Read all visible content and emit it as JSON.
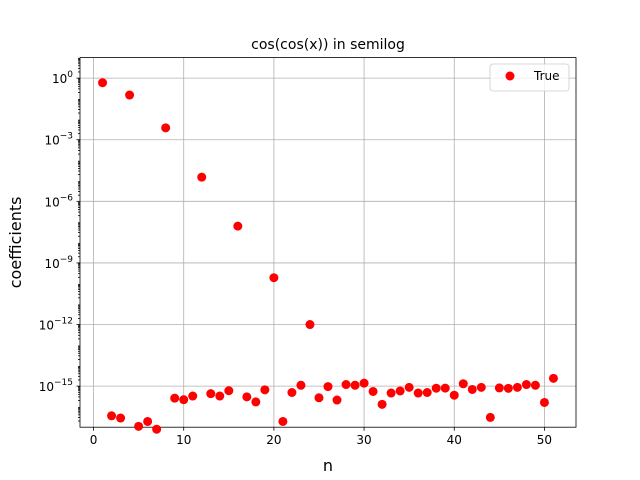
{
  "chart_data": {
    "type": "scatter",
    "title": "cos(cos(x)) in semilog",
    "xlabel": "n",
    "ylabel": "coefficients",
    "xlim": [
      -1.5,
      53.5
    ],
    "ylim": [
      1e-17,
      10
    ],
    "yscale": "log",
    "grid": true,
    "legend": {
      "position": "top-right",
      "entries": [
        "True"
      ]
    },
    "x_ticks": [
      0,
      10,
      20,
      30,
      40,
      50
    ],
    "x_tick_labels": [
      "0",
      "10",
      "20",
      "30",
      "40",
      "50"
    ],
    "y_ticks": [
      1,
      0.001,
      1e-06,
      1e-09,
      1e-12,
      1e-15
    ],
    "y_tick_labels": [
      {
        "base": "10",
        "exp": "0"
      },
      {
        "base": "10",
        "exp": "−3"
      },
      {
        "base": "10",
        "exp": "−6"
      },
      {
        "base": "10",
        "exp": "−9"
      },
      {
        "base": "10",
        "exp": "−12"
      },
      {
        "base": "10",
        "exp": "−15"
      }
    ],
    "series": [
      {
        "name": "True",
        "color": "#ff0000",
        "x": [
          1,
          2,
          3,
          4,
          5,
          6,
          7,
          8,
          9,
          10,
          11,
          12,
          13,
          14,
          15,
          16,
          17,
          18,
          19,
          20,
          21,
          22,
          23,
          24,
          25,
          26,
          27,
          28,
          29,
          30,
          31,
          32,
          33,
          34,
          35,
          36,
          37,
          38,
          39,
          40,
          41,
          42,
          43,
          44,
          45,
          46,
          47,
          48,
          49,
          50,
          51
        ],
        "y": [
          0.6,
          3.6e-17,
          2.8e-17,
          0.15,
          1.1e-17,
          1.9e-17,
          8e-18,
          0.0038,
          2.6e-16,
          2.2e-16,
          3.3e-16,
          1.5e-05,
          4.3e-16,
          3.3e-16,
          6e-16,
          6.2e-08,
          3e-16,
          1.7e-16,
          6.6e-16,
          1.9e-10,
          1.9e-17,
          4.9e-16,
          1.1e-15,
          1e-12,
          2.7e-16,
          9.5e-16,
          2.1e-16,
          1.2e-15,
          1.1e-15,
          1.4e-15,
          5.5e-16,
          1.3e-16,
          4.6e-16,
          5.8e-16,
          8.7e-16,
          4.6e-16,
          4.9e-16,
          7.9e-16,
          8e-16,
          3.6e-16,
          1.3e-15,
          6.9e-16,
          8.7e-16,
          3e-17,
          8.2e-16,
          7.8e-16,
          8.7e-16,
          1.2e-15,
          1.1e-15,
          1.6e-16,
          2.4e-15
        ]
      }
    ]
  }
}
